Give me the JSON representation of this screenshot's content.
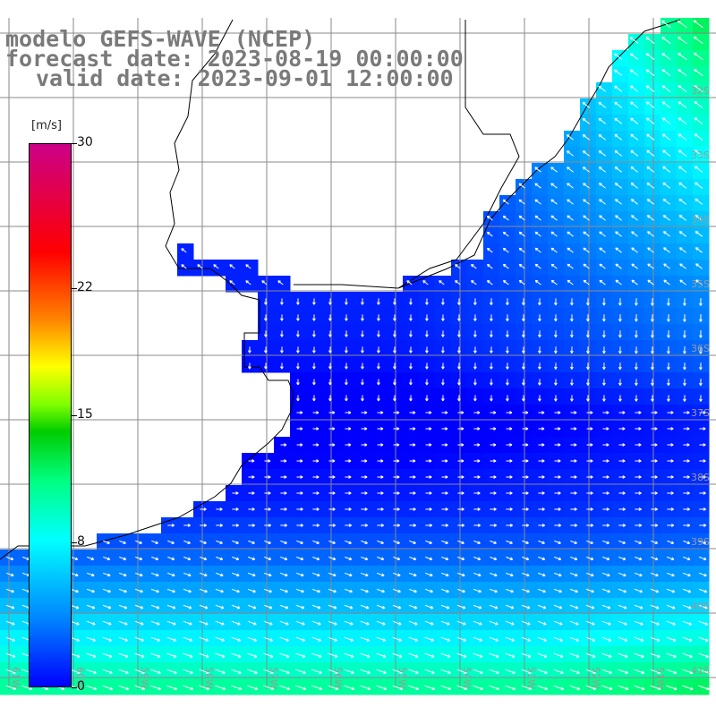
{
  "header": {
    "title": "modelo GEFS-WAVE (NCEP)",
    "forecast_date": "forecast date: 2023-08-19 00:00:00",
    "valid_date": "valid date: 2023-09-01 12:00:00"
  },
  "legend": {
    "unit": "[m/s]",
    "ticks": [
      "30",
      "22",
      "15",
      "8",
      "0"
    ],
    "tick_values": [
      30,
      22,
      15,
      8,
      0
    ],
    "range": [
      0,
      30
    ],
    "colors": [
      "#0000ff",
      "#0080ff",
      "#00ffff",
      "#00ff80",
      "#00cc00",
      "#7fff00",
      "#ffff00",
      "#ff8000",
      "#ff0000",
      "#cc0088"
    ]
  },
  "map": {
    "lat_labels": [
      "32S",
      "33S",
      "34S",
      "35S",
      "36S",
      "37S",
      "38S",
      "39S",
      "40S",
      "41S"
    ],
    "lon_labels": [
      "61W",
      "60W",
      "59W",
      "58W",
      "57W",
      "56W",
      "55W",
      "54W",
      "53W",
      "52W",
      "51W"
    ],
    "background": "#ffffff",
    "grid_color": "#8a8a8a"
  }
}
